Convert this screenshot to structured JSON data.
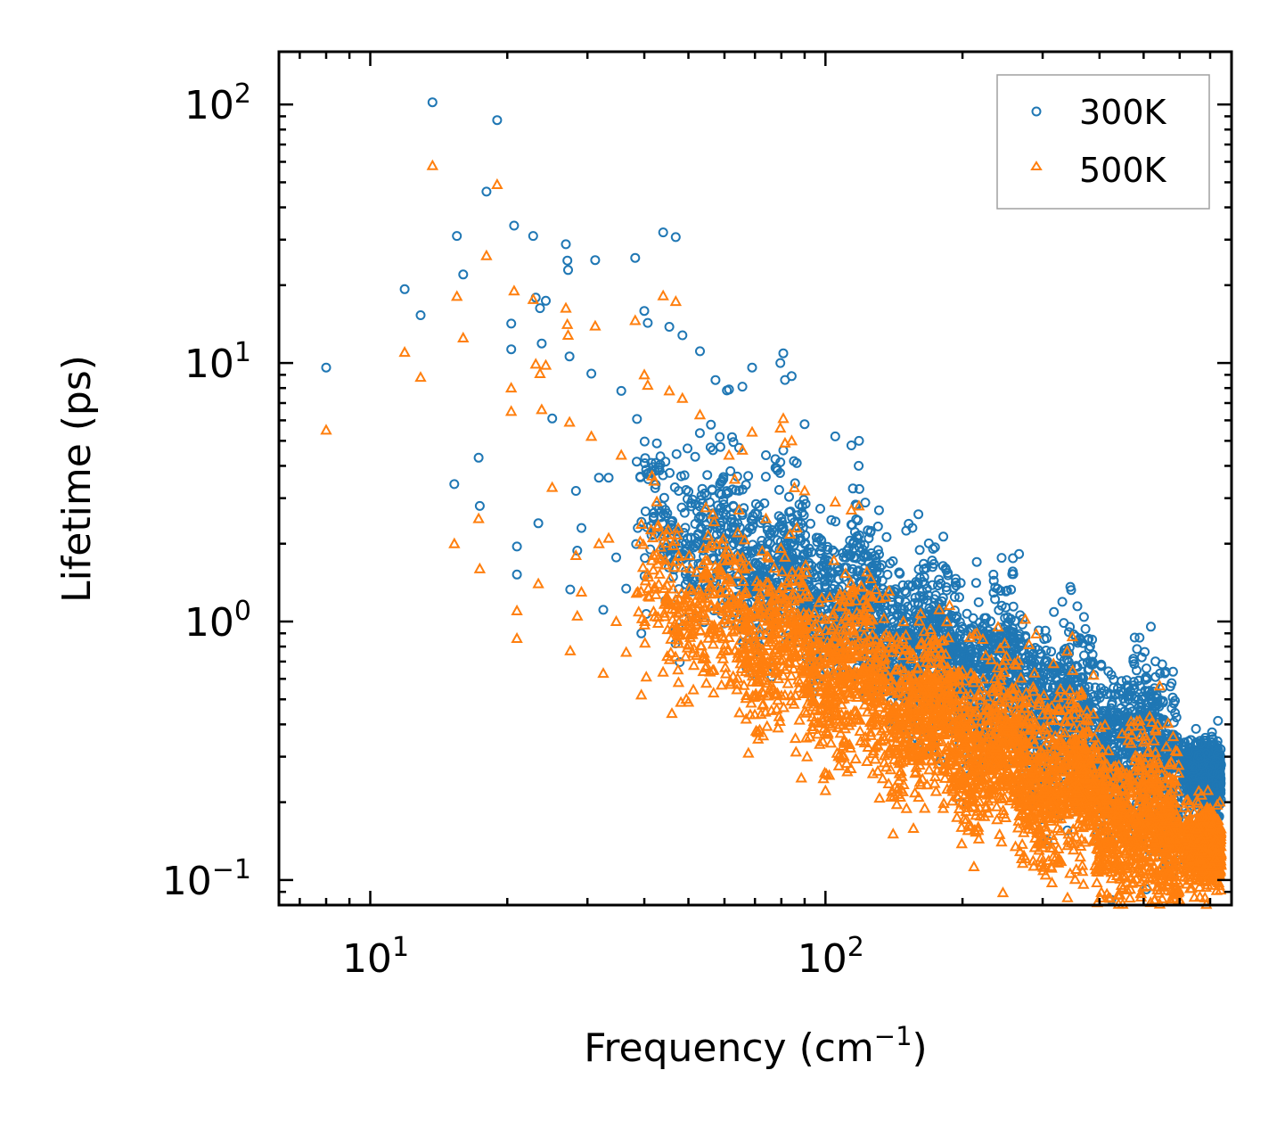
{
  "chart_data": {
    "type": "scatter",
    "title": "",
    "xlabel": "Frequency (cm",
    "xlabel_sup": "−1",
    "xlabel_end": ")",
    "ylabel": "Lifetime (ps)",
    "xscale": "log",
    "yscale": "log",
    "xlim": [
      6.3,
      780
    ],
    "ylim": [
      0.08,
      160
    ],
    "x_ticks": [
      {
        "value": 10,
        "base": "10",
        "exp": "1"
      },
      {
        "value": 100,
        "base": "10",
        "exp": "2"
      }
    ],
    "y_ticks": [
      {
        "value": 0.1,
        "base": "10",
        "exp": "−1"
      },
      {
        "value": 1,
        "base": "10",
        "exp": "0"
      },
      {
        "value": 10,
        "base": "10",
        "exp": "1"
      },
      {
        "value": 100,
        "base": "10",
        "exp": "2"
      }
    ],
    "legend_position": "top-right",
    "series": [
      {
        "name": "300K",
        "marker": "circle",
        "color": "#1f77b4",
        "points": [
          [
            8.0,
            9.6
          ],
          [
            11.9,
            19.3
          ],
          [
            12.9,
            15.3
          ],
          [
            13.7,
            102
          ],
          [
            15.3,
            3.4
          ],
          [
            15.5,
            31
          ],
          [
            16.0,
            22
          ],
          [
            17.3,
            4.3
          ],
          [
            17.4,
            2.8
          ],
          [
            18.0,
            46
          ],
          [
            19.0,
            87
          ],
          [
            20.4,
            14.2
          ],
          [
            20.4,
            11.3
          ],
          [
            20.7,
            34
          ],
          [
            21.0,
            1.95
          ],
          [
            21.0,
            1.52
          ],
          [
            22.8,
            31
          ],
          [
            23.1,
            17.9
          ],
          [
            23.4,
            2.4
          ],
          [
            23.6,
            16.3
          ],
          [
            23.8,
            11.9
          ],
          [
            24.3,
            17.4
          ],
          [
            25.1,
            6.1
          ],
          [
            26.9,
            28.8
          ],
          [
            27.1,
            24.9
          ],
          [
            27.2,
            22.9
          ],
          [
            27.4,
            10.6
          ],
          [
            27.5,
            1.33
          ],
          [
            28.3,
            3.2
          ],
          [
            28.5,
            1.88
          ],
          [
            29.1,
            2.3
          ],
          [
            30.6,
            9.1
          ],
          [
            31.2,
            25
          ],
          [
            31.8,
            3.6
          ],
          [
            32.5,
            1.11
          ],
          [
            33.4,
            3.6
          ],
          [
            34.7,
            1.77
          ],
          [
            35.6,
            7.8
          ],
          [
            36.5,
            1.34
          ],
          [
            38.2,
            25.5
          ],
          [
            38.7,
            2.3
          ],
          [
            39.4,
            0.9
          ],
          [
            40.0,
            15.9
          ],
          [
            40.1,
            1.76
          ],
          [
            40.4,
            1.07
          ],
          [
            40.7,
            14.3
          ],
          [
            44.0,
            32
          ],
          [
            44.8,
            2.2
          ],
          [
            45.4,
            13.8
          ],
          [
            46.9,
            30.7
          ],
          [
            47.6,
            3.2
          ],
          [
            48.5,
            12.8
          ],
          [
            53.0,
            11.1
          ],
          [
            56.6,
            4.6
          ],
          [
            61.4,
            7.9
          ],
          [
            64.6,
            4.7
          ],
          [
            65.7,
            8.1
          ],
          [
            69.0,
            9.6
          ],
          [
            74.0,
            4.4
          ],
          [
            79.6,
            10
          ],
          [
            80.8,
            10.9
          ],
          [
            81.5,
            8.6
          ],
          [
            84.3,
            8.9
          ],
          [
            86.5,
            4.1
          ],
          [
            90.0,
            5.8
          ],
          [
            105.1,
            5.2
          ],
          [
            114.0,
            4.8
          ],
          [
            118.5,
            5.0
          ],
          [
            93.8,
            0.9
          ],
          [
            160.0,
            2.6
          ],
          [
            215.0,
            1.7
          ]
        ]
      },
      {
        "name": "500K",
        "marker": "triangle",
        "color": "#ff7f0e",
        "points": [
          [
            8.0,
            5.5
          ],
          [
            11.9,
            11.0
          ],
          [
            12.9,
            8.8
          ],
          [
            13.7,
            58
          ],
          [
            15.3,
            2.0
          ],
          [
            15.5,
            18.1
          ],
          [
            16.0,
            12.5
          ],
          [
            17.3,
            2.5
          ],
          [
            17.4,
            1.6
          ],
          [
            18.0,
            26
          ],
          [
            19.0,
            49
          ],
          [
            20.4,
            8.0
          ],
          [
            20.4,
            6.5
          ],
          [
            20.7,
            19.0
          ],
          [
            21.0,
            1.1
          ],
          [
            21.0,
            0.86
          ],
          [
            22.8,
            17.6
          ],
          [
            23.1,
            9.9
          ],
          [
            23.4,
            1.4
          ],
          [
            23.6,
            9.1
          ],
          [
            23.8,
            6.6
          ],
          [
            24.3,
            9.8
          ],
          [
            25.1,
            3.3
          ],
          [
            26.9,
            16.3
          ],
          [
            27.1,
            14.1
          ],
          [
            27.2,
            12.8
          ],
          [
            27.4,
            5.9
          ],
          [
            27.5,
            0.77
          ],
          [
            28.3,
            1.8
          ],
          [
            28.5,
            1.05
          ],
          [
            29.1,
            1.3
          ],
          [
            30.6,
            5.2
          ],
          [
            31.2,
            13.9
          ],
          [
            31.8,
            2.0
          ],
          [
            32.5,
            0.63
          ],
          [
            33.4,
            2.1
          ],
          [
            34.7,
            1.0
          ],
          [
            35.6,
            4.4
          ],
          [
            36.5,
            0.76
          ],
          [
            38.2,
            14.6
          ],
          [
            38.7,
            1.3
          ],
          [
            39.4,
            0.52
          ],
          [
            40.0,
            9.0
          ],
          [
            40.1,
            1.0
          ],
          [
            40.4,
            0.61
          ],
          [
            40.7,
            8.2
          ],
          [
            44.0,
            18.2
          ],
          [
            44.8,
            1.25
          ],
          [
            45.4,
            7.8
          ],
          [
            46.9,
            17.3
          ],
          [
            47.6,
            1.8
          ],
          [
            48.5,
            7.3
          ],
          [
            53.0,
            6.3
          ],
          [
            56.6,
            2.6
          ],
          [
            61.4,
            4.4
          ],
          [
            64.6,
            2.7
          ],
          [
            65.7,
            4.6
          ],
          [
            69.0,
            5.4
          ],
          [
            74.0,
            2.5
          ],
          [
            79.6,
            5.6
          ],
          [
            80.8,
            6.1
          ],
          [
            81.5,
            4.9
          ],
          [
            84.3,
            5.0
          ],
          [
            86.5,
            2.3
          ],
          [
            90.0,
            3.2
          ],
          [
            105.1,
            2.9
          ],
          [
            114.0,
            2.7
          ],
          [
            118.5,
            2.8
          ],
          [
            93.8,
            0.5
          ],
          [
            160.0,
            0.3
          ],
          [
            175.0,
            0.22
          ],
          [
            215.0,
            0.9
          ]
        ]
      }
    ],
    "dense_bands": [
      {
        "series": "300K",
        "x_min": 38,
        "x_max": 600,
        "slope": -0.88,
        "center_at_100": 1.25,
        "spread_decades": 0.33,
        "count": 3200
      },
      {
        "series": "300K",
        "x_min": 610,
        "x_max": 740,
        "slope": -1.9,
        "center_at_100": 9.5,
        "spread_decades": 0.13,
        "count": 700
      },
      {
        "series": "500K",
        "x_min": 38,
        "x_max": 600,
        "slope": -0.88,
        "center_at_100": 0.66,
        "spread_decades": 0.33,
        "count": 3600
      },
      {
        "series": "500K",
        "x_min": 610,
        "x_max": 740,
        "slope": -1.9,
        "center_at_100": 5.0,
        "spread_decades": 0.13,
        "count": 800
      }
    ]
  }
}
